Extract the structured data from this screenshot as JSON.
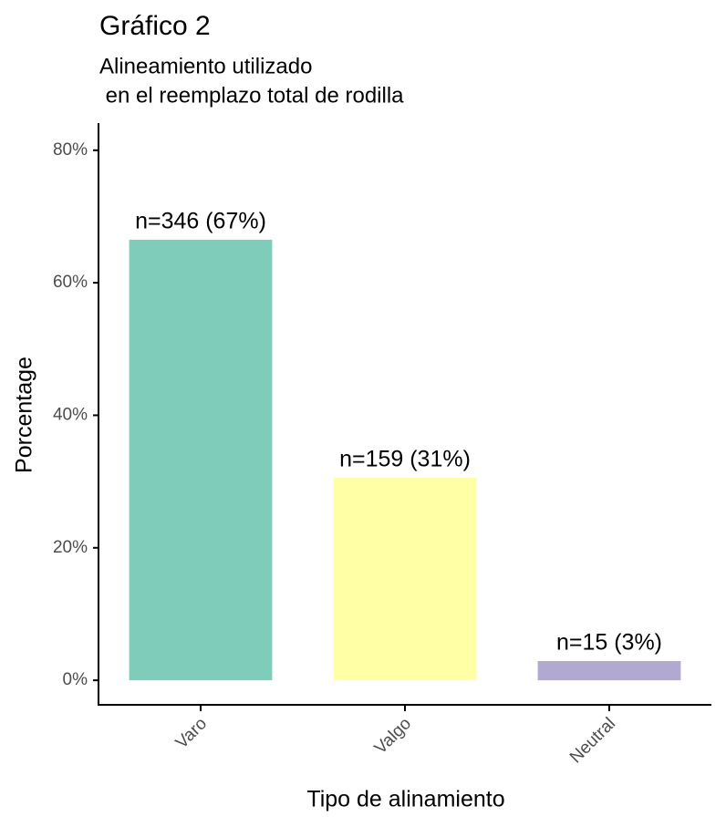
{
  "chart_data": {
    "type": "bar",
    "title": "Gráfico 2",
    "subtitle": [
      "Alineamiento utilizado",
      " en el reemplazo total de rodilla"
    ],
    "x_label": "Tipo de alinamiento",
    "y_label": "Porcentage",
    "categories": [
      "Varo",
      "Valgo",
      "Neutral"
    ],
    "values": [
      66.5,
      30.6,
      2.9
    ],
    "value_labels": [
      "n=346 (67%)",
      "n=159 (31%)",
      "n=15 (3%)"
    ],
    "colors": [
      "#80ccbb",
      "#ffffa6",
      "#b1a9d1"
    ],
    "ylim": [
      -3.7,
      84.1
    ],
    "yticks": [
      {
        "value": 0,
        "label": "0%"
      },
      {
        "value": 20,
        "label": "20%"
      },
      {
        "value": 40,
        "label": "40%"
      },
      {
        "value": 60,
        "label": "60%"
      },
      {
        "value": 80,
        "label": "80%"
      }
    ],
    "grid": false
  }
}
